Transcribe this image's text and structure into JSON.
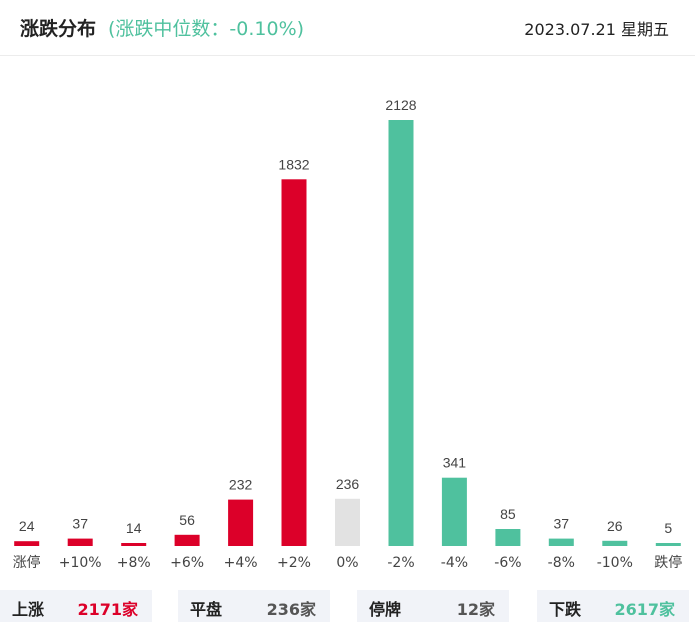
{
  "header": {
    "title": "涨跌分布",
    "median_text": "(涨跌中位数：-0.10%)",
    "date": "2023.07.21 星期五"
  },
  "colors": {
    "up": "#dc0029",
    "flat": "#e2e2e2",
    "down": "#4fc19e",
    "text": "#555555"
  },
  "chart_data": {
    "type": "bar",
    "categories": [
      "涨停",
      "+10%",
      "+8%",
      "+6%",
      "+4%",
      "+2%",
      "0%",
      "-2%",
      "-4%",
      "-6%",
      "-8%",
      "-10%",
      "跌停"
    ],
    "values": [
      24,
      37,
      14,
      56,
      232,
      1832,
      236,
      2128,
      341,
      85,
      37,
      26,
      5
    ],
    "bar_colors": [
      "up",
      "up",
      "up",
      "up",
      "up",
      "up",
      "flat",
      "down",
      "down",
      "down",
      "down",
      "down",
      "down"
    ],
    "title": "",
    "xlabel": "",
    "ylabel": "",
    "ylim": [
      0,
      2128
    ],
    "grid": false,
    "legend": "none"
  },
  "summary": [
    {
      "label": "上涨",
      "value": "2171家",
      "color": "up"
    },
    {
      "label": "平盘",
      "value": "236家",
      "color": "text"
    },
    {
      "label": "停牌",
      "value": "12家",
      "color": "text"
    },
    {
      "label": "下跌",
      "value": "2617家",
      "color": "down"
    }
  ]
}
